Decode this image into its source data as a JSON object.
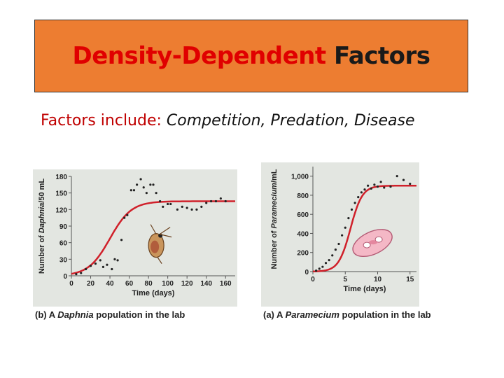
{
  "slide": {
    "title_part1": "Density-Dependent",
    "title_part2": "Factors",
    "subtitle_label": "Factors include:",
    "subtitle_items": "Competition, Predation, Disease"
  },
  "colors": {
    "title_bg": "#ed7d31",
    "plot_bg": "#e3e6e1",
    "curve": "#d0202a",
    "title_red": "#e00000"
  },
  "chart_data": [
    {
      "type": "scatter",
      "curve": "logistic",
      "panel": "(b)",
      "caption_prefix": "A",
      "caption_organism": "Daphnia",
      "caption_suffix": "population in the lab",
      "xlabel": "Time (days)",
      "ylabel_prefix": "Number of",
      "ylabel_organism": "Daphnia",
      "ylabel_suffix": "/50 mL",
      "xlim": [
        0,
        170
      ],
      "ylim": [
        0,
        180
      ],
      "xticks": [
        0,
        20,
        40,
        60,
        80,
        100,
        120,
        140,
        160
      ],
      "yticks": [
        0,
        30,
        60,
        90,
        120,
        150,
        180
      ],
      "carrying_capacity": 135,
      "growth_rate": 0.09,
      "midpoint": 40,
      "points": [
        [
          5,
          3
        ],
        [
          10,
          5
        ],
        [
          15,
          12
        ],
        [
          20,
          18
        ],
        [
          25,
          22
        ],
        [
          30,
          28
        ],
        [
          33,
          16
        ],
        [
          37,
          20
        ],
        [
          42,
          12
        ],
        [
          45,
          30
        ],
        [
          48,
          28
        ],
        [
          52,
          65
        ],
        [
          55,
          105
        ],
        [
          58,
          110
        ],
        [
          62,
          155
        ],
        [
          65,
          155
        ],
        [
          68,
          165
        ],
        [
          72,
          175
        ],
        [
          75,
          160
        ],
        [
          78,
          150
        ],
        [
          82,
          165
        ],
        [
          85,
          165
        ],
        [
          88,
          150
        ],
        [
          92,
          135
        ],
        [
          95,
          125
        ],
        [
          100,
          130
        ],
        [
          103,
          130
        ],
        [
          110,
          120
        ],
        [
          115,
          125
        ],
        [
          120,
          123
        ],
        [
          125,
          120
        ],
        [
          130,
          120
        ],
        [
          135,
          125
        ],
        [
          140,
          132
        ],
        [
          145,
          135
        ],
        [
          150,
          135
        ],
        [
          155,
          140
        ],
        [
          160,
          135
        ]
      ]
    },
    {
      "type": "scatter",
      "curve": "logistic",
      "panel": "(a)",
      "caption_prefix": "A",
      "caption_organism": "Paramecium",
      "caption_suffix": "population in the lab",
      "xlabel": "Time (days)",
      "ylabel_prefix": "Number of",
      "ylabel_organism": "Paramecium",
      "ylabel_suffix": "/mL",
      "xlim": [
        0,
        16
      ],
      "ylim": [
        0,
        1100
      ],
      "xticks": [
        0,
        5,
        10,
        15
      ],
      "yticks": [
        0,
        200,
        400,
        600,
        800,
        1000
      ],
      "carrying_capacity": 900,
      "growth_rate": 1.1,
      "midpoint": 5.8,
      "points": [
        [
          0.5,
          10
        ],
        [
          1,
          30
        ],
        [
          1.5,
          50
        ],
        [
          2,
          90
        ],
        [
          2.5,
          120
        ],
        [
          3,
          170
        ],
        [
          3.5,
          230
        ],
        [
          4,
          290
        ],
        [
          4.5,
          380
        ],
        [
          5,
          460
        ],
        [
          5.5,
          560
        ],
        [
          6,
          650
        ],
        [
          6.5,
          720
        ],
        [
          7,
          780
        ],
        [
          7.5,
          830
        ],
        [
          8,
          860
        ],
        [
          8.5,
          900
        ],
        [
          9,
          870
        ],
        [
          9.5,
          910
        ],
        [
          10,
          890
        ],
        [
          10.5,
          940
        ],
        [
          11,
          880
        ],
        [
          12,
          890
        ],
        [
          13,
          1000
        ],
        [
          14,
          960
        ],
        [
          15,
          920
        ]
      ]
    }
  ]
}
